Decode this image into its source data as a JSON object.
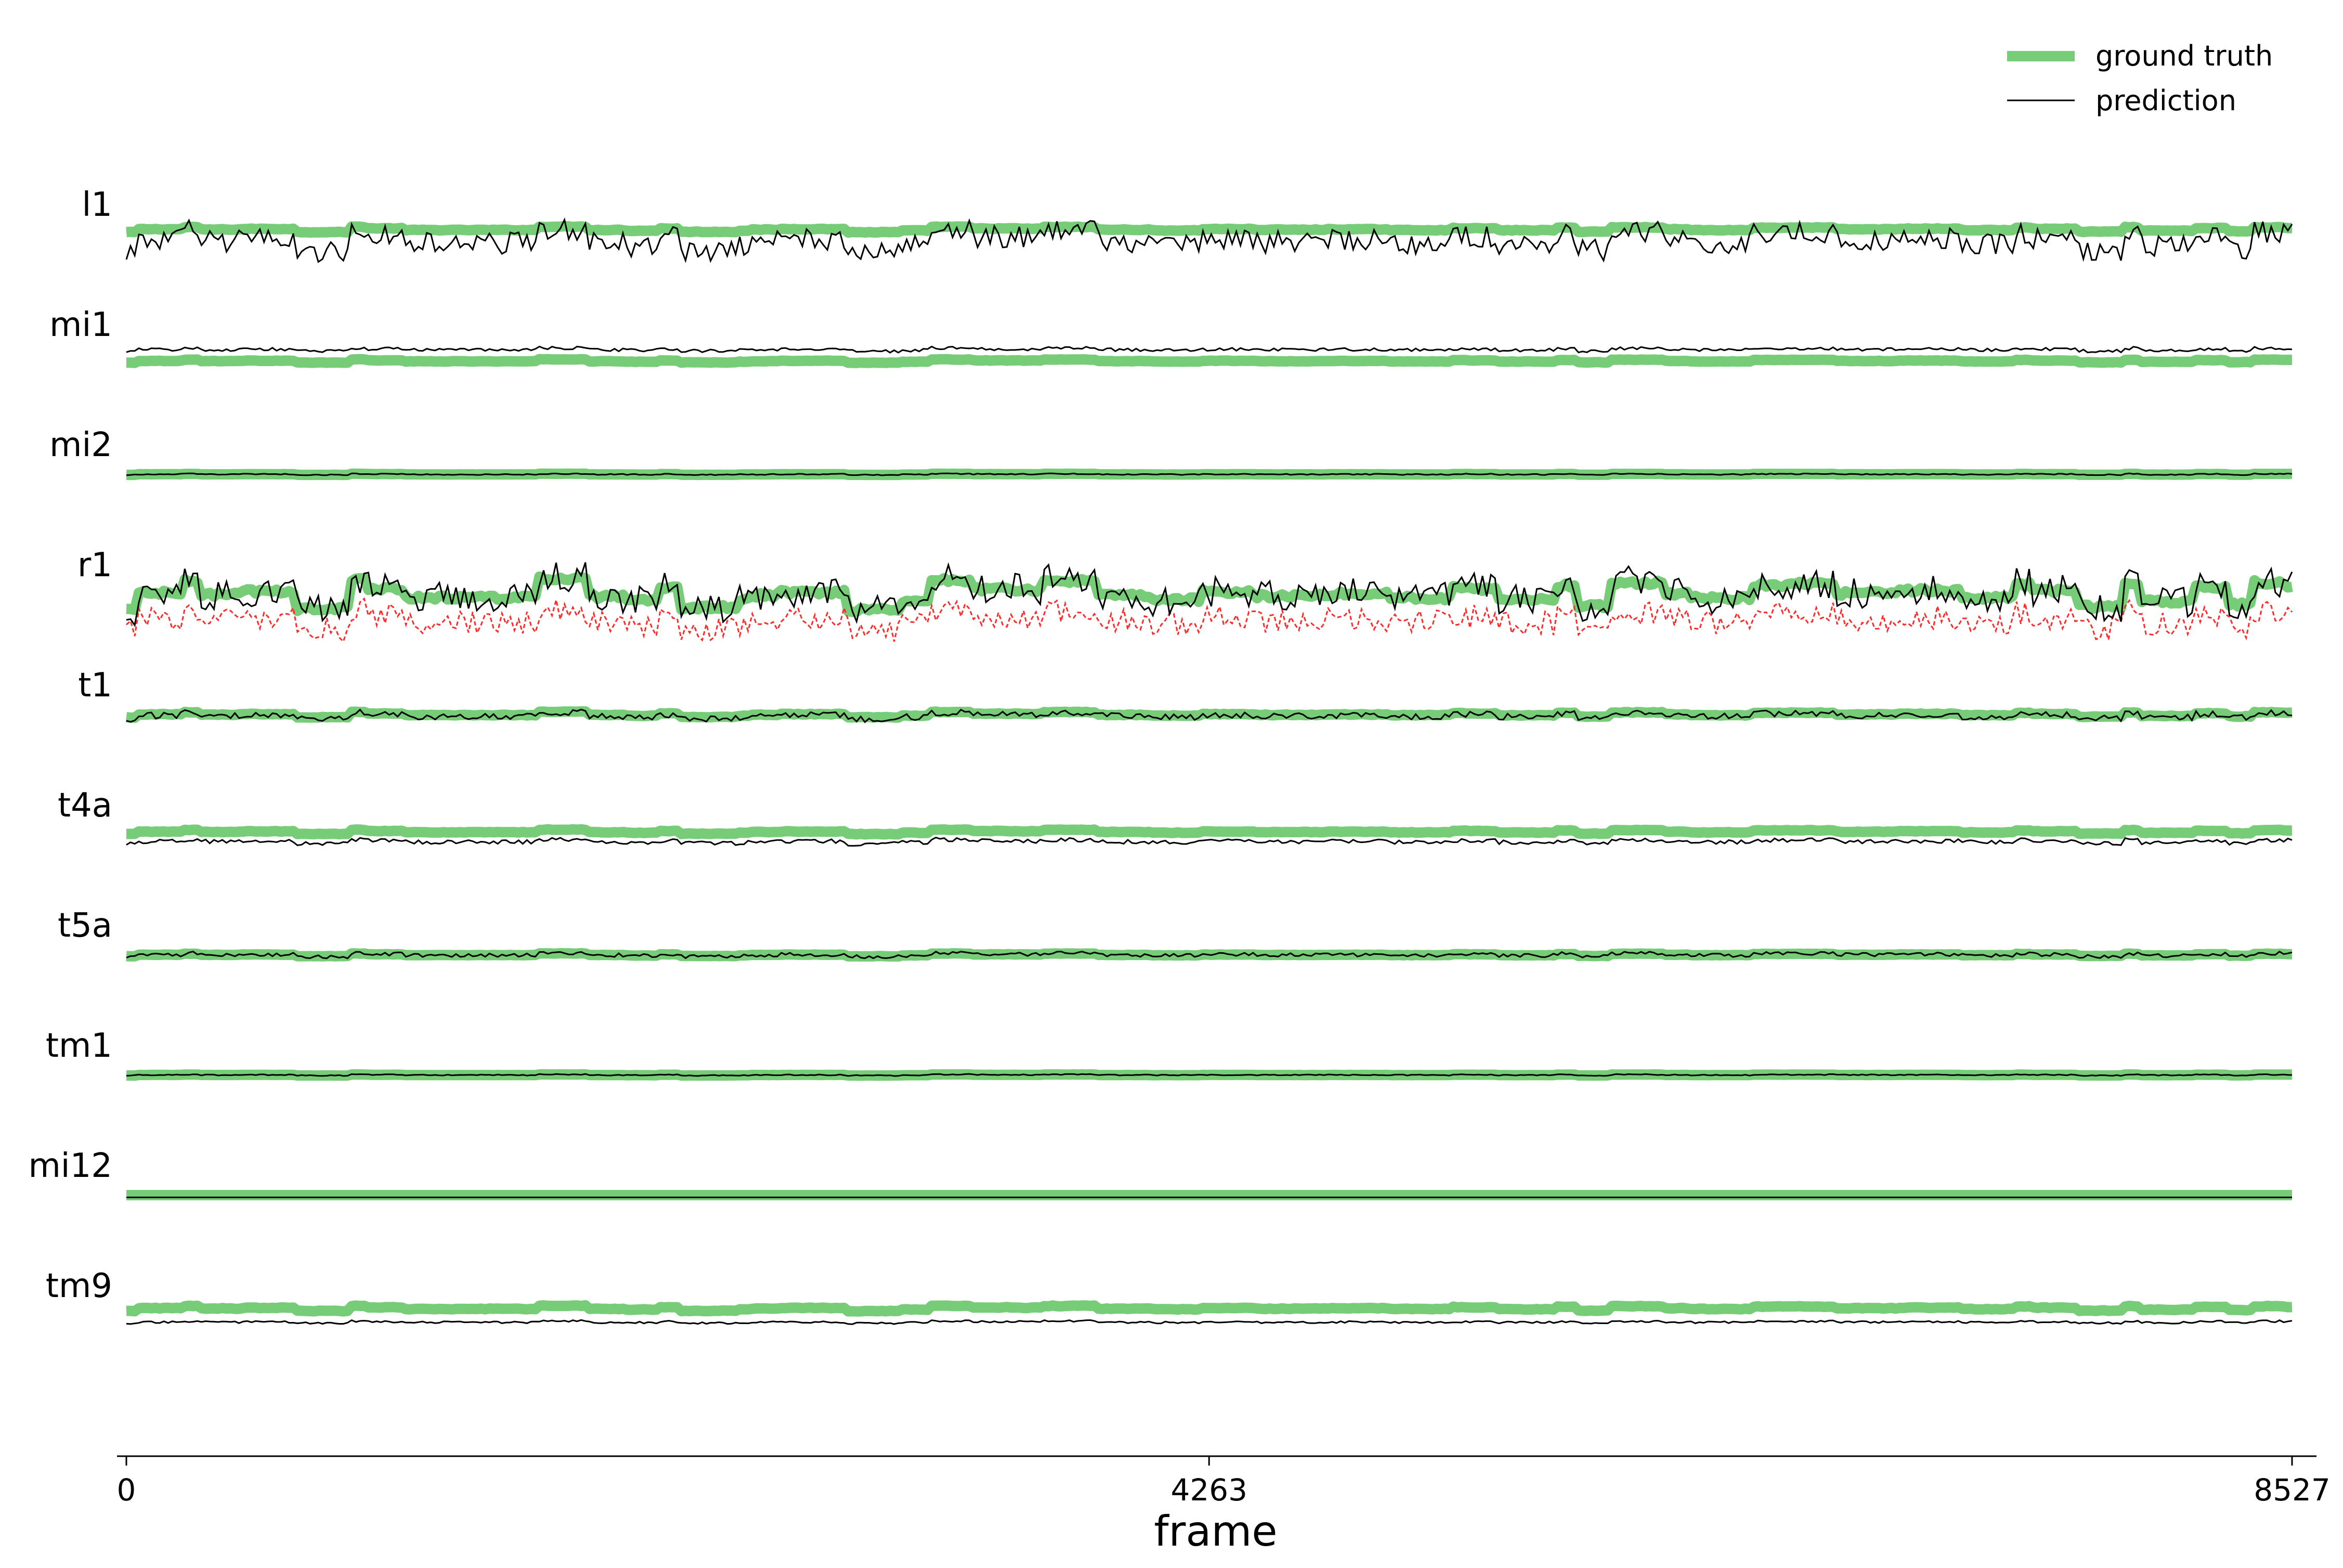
{
  "chart_data": {
    "type": "line",
    "xlabel": "frame",
    "xlim": [
      0,
      8527
    ],
    "xticks": [
      "0",
      "4263",
      "8527"
    ],
    "legend": {
      "placement": "top-right",
      "entries": [
        {
          "label": "ground truth",
          "color": "#77cc77"
        },
        {
          "label": "prediction",
          "color": "#000000"
        }
      ]
    },
    "colors": {
      "ground_truth": "#77cc77",
      "prediction": "#000000",
      "extra_trace": "#ff2a2a"
    },
    "traces": [
      {
        "name": "l1",
        "gt_offset": 0.08,
        "pred_offset": -0.12,
        "gt_amp": 0.1,
        "pred_amp": 0.42,
        "extra": false
      },
      {
        "name": "mi1",
        "gt_offset": -0.12,
        "pred_offset": 0.08,
        "gt_amp": 0.06,
        "pred_amp": 0.06,
        "extra": false
      },
      {
        "name": "mi2",
        "gt_offset": 0.0,
        "pred_offset": 0.0,
        "gt_amp": 0.02,
        "pred_amp": 0.02,
        "extra": false
      },
      {
        "name": "r1",
        "gt_offset": 0.0,
        "pred_offset": 0.0,
        "gt_amp": 0.55,
        "pred_amp": 0.6,
        "extra": true
      },
      {
        "name": "t1",
        "gt_offset": 0.0,
        "pred_offset": -0.02,
        "gt_amp": 0.1,
        "pred_amp": 0.12,
        "extra": false
      },
      {
        "name": "t4a",
        "gt_offset": 0.05,
        "pred_offset": -0.12,
        "gt_amp": 0.08,
        "pred_amp": 0.08,
        "extra": false
      },
      {
        "name": "t5a",
        "gt_offset": 0.0,
        "pred_offset": 0.0,
        "gt_amp": 0.05,
        "pred_amp": 0.07,
        "extra": false
      },
      {
        "name": "tm1",
        "gt_offset": 0.0,
        "pred_offset": 0.0,
        "gt_amp": 0.02,
        "pred_amp": 0.02,
        "extra": false
      },
      {
        "name": "mi12",
        "gt_offset": 0.0,
        "pred_offset": -0.04,
        "gt_amp": 0.0,
        "pred_amp": 0.0,
        "extra": false
      },
      {
        "name": "tm9",
        "gt_offset": 0.12,
        "pred_offset": -0.12,
        "gt_amp": 0.1,
        "pred_amp": 0.04,
        "extra": false
      }
    ]
  }
}
